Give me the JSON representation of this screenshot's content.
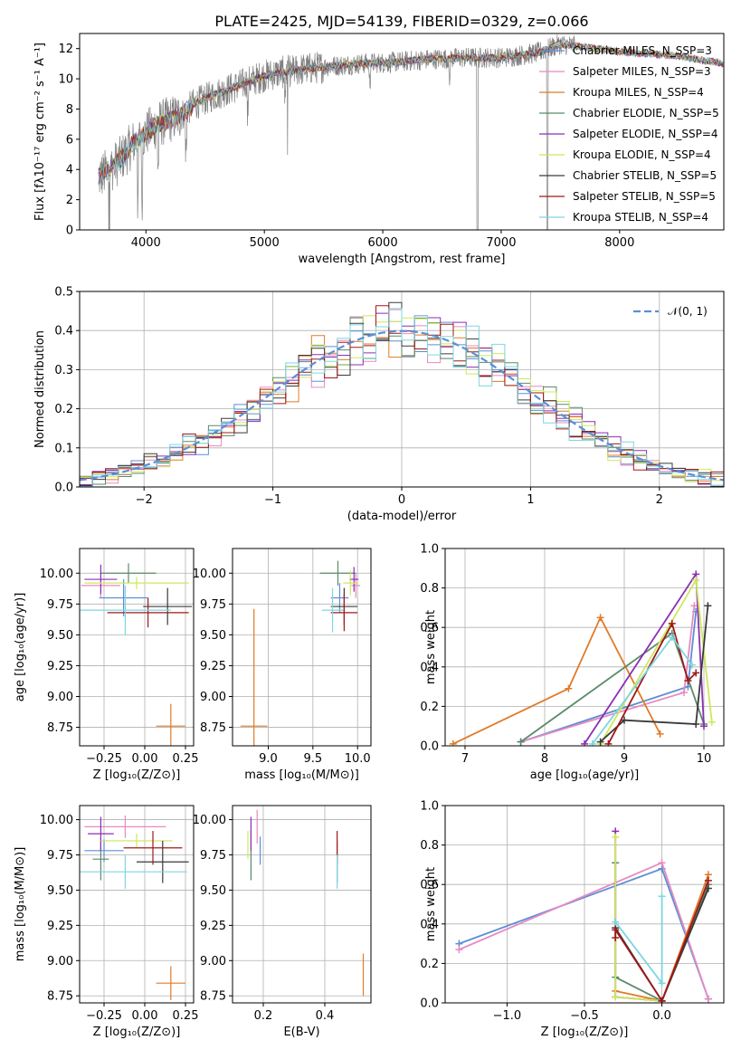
{
  "colors": {
    "chabrier_miles": "#5b8fd6",
    "salpeter_miles": "#e88ac0",
    "kroupa_miles": "#e07b28",
    "chabrier_elodie": "#5a8a6a",
    "salpeter_elodie": "#8b2fb4",
    "kroupa_elodie": "#cde85a",
    "chabrier_stelib": "#3a3a3a",
    "salpeter_stelib": "#a01818",
    "kroupa_stelib": "#7dd6e0",
    "data": "#808080",
    "normal": "#5b8fd6"
  },
  "chart_data": [
    {
      "id": "spectrum",
      "type": "line",
      "title": "PLATE=2425, MJD=54139, FIBERID=0329, z=0.066",
      "xlabel": "wavelength [Angstrom, rest frame]",
      "ylabel": "Flux [fλ10⁻¹⁷ erg cm⁻² s⁻¹ A⁻¹]",
      "xlim": [
        3440,
        8880
      ],
      "ylim": [
        0,
        13
      ],
      "xticks": [
        "4000",
        "5000",
        "6000",
        "7000",
        "8000"
      ],
      "yticks": [
        "0",
        "2",
        "4",
        "6",
        "8",
        "10",
        "12"
      ],
      "grid": false,
      "legend_position": "right",
      "continuum": {
        "x": [
          3600,
          3700,
          3800,
          3900,
          4000,
          4100,
          4200,
          4300,
          4400,
          4600,
          4800,
          5000,
          5200,
          5500,
          5800,
          6100,
          6400,
          6700,
          7000,
          7300,
          7500,
          8000,
          8500,
          8880
        ],
        "y": [
          3.5,
          4.0,
          4.8,
          5.8,
          6.4,
          7.0,
          7.3,
          7.6,
          8.3,
          9.0,
          9.6,
          10.2,
          10.5,
          10.8,
          11.0,
          11.1,
          11.3,
          11.4,
          11.4,
          11.7,
          12.3,
          11.8,
          11.5,
          11.0
        ]
      },
      "legend": [
        "Chabrier MILES, N_SSP=3",
        "Salpeter MILES, N_SSP=3",
        "Kroupa MILES, N_SSP=4",
        "Chabrier ELODIE, N_SSP=5",
        "Salpeter ELODIE, N_SSP=4",
        "Kroupa ELODIE, N_SSP=4",
        "Chabrier STELIB, N_SSP=5",
        "Salpeter STELIB, N_SSP=5",
        "Kroupa STELIB, N_SSP=4"
      ]
    },
    {
      "id": "residuals",
      "type": "histogram",
      "xlabel": "(data-model)/error",
      "ylabel": "Normed distribution",
      "xlim": [
        -2.5,
        2.5
      ],
      "ylim": [
        0,
        0.5
      ],
      "xticks": [
        "−2",
        "−1",
        "0",
        "1",
        "2"
      ],
      "yticks": [
        "0.0",
        "0.1",
        "0.2",
        "0.3",
        "0.4",
        "0.5"
      ],
      "grid": true,
      "bin_width": 0.1,
      "reference_curve": "N(0,1)",
      "legend": [
        "𝒩(0, 1)"
      ],
      "legend_position": "top-right"
    },
    {
      "id": "age_vs_Z",
      "type": "errorbar",
      "xlabel": "Z [log₁₀(Z/Z⊙)]",
      "ylabel": "age  [log₁₀(age/yr)]",
      "xlim": [
        -0.4,
        0.3
      ],
      "ylim": [
        8.6,
        10.2
      ],
      "xticks": [
        "−0.25",
        "0.00",
        "0.25"
      ],
      "yticks": [
        "8.75",
        "9.00",
        "9.25",
        "9.50",
        "9.75",
        "10.00"
      ],
      "grid": true,
      "points": [
        {
          "model": "chabrier_miles",
          "x": -0.13,
          "xerr": 0.15,
          "y": 9.8,
          "yerr": 0.15
        },
        {
          "model": "salpeter_miles",
          "x": -0.27,
          "xerr": 0.12,
          "y": 9.9,
          "yerr": 0.1
        },
        {
          "model": "kroupa_miles",
          "x": 0.16,
          "xerr": 0.09,
          "y": 8.76,
          "yerr": 0.18
        },
        {
          "model": "chabrier_elodie",
          "x": -0.1,
          "xerr": 0.17,
          "y": 10.0,
          "yerr": 0.08
        },
        {
          "model": "salpeter_elodie",
          "x": -0.27,
          "xerr": 0.1,
          "y": 9.95,
          "yerr": 0.12
        },
        {
          "model": "kroupa_elodie",
          "x": -0.05,
          "xerr": 0.32,
          "y": 9.92,
          "yerr": 0.05
        },
        {
          "model": "chabrier_stelib",
          "x": 0.14,
          "xerr": 0.15,
          "y": 9.73,
          "yerr": 0.15
        },
        {
          "model": "salpeter_stelib",
          "x": 0.02,
          "xerr": 0.25,
          "y": 9.68,
          "yerr": 0.12
        },
        {
          "model": "kroupa_stelib",
          "x": -0.12,
          "xerr": 0.28,
          "y": 9.7,
          "yerr": 0.2
        }
      ]
    },
    {
      "id": "age_vs_mass",
      "type": "errorbar",
      "xlabel": "mass [log₁₀(M/M⊙)]",
      "ylabel": "",
      "xlim": [
        8.6,
        10.15
      ],
      "ylim": [
        8.6,
        10.2
      ],
      "xticks": [
        "9.0",
        "9.5",
        "10.0"
      ],
      "yticks": [
        "8.75",
        "9.00",
        "9.25",
        "9.50",
        "9.75",
        "10.00"
      ],
      "grid": true,
      "points": [
        {
          "model": "chabrier_miles",
          "x": 9.8,
          "xerr": 0.1,
          "y": 9.8,
          "yerr": 0.12
        },
        {
          "model": "salpeter_miles",
          "x": 9.98,
          "xerr": 0.05,
          "y": 9.9,
          "yerr": 0.1
        },
        {
          "model": "kroupa_miles",
          "x": 8.84,
          "xerr": 0.15,
          "y": 8.76,
          "yerr": 0.95
        },
        {
          "model": "chabrier_elodie",
          "x": 9.78,
          "xerr": 0.2,
          "y": 10.0,
          "yerr": 0.1
        },
        {
          "model": "salpeter_elodie",
          "x": 9.96,
          "xerr": 0.05,
          "y": 9.95,
          "yerr": 0.1
        },
        {
          "model": "kroupa_elodie",
          "x": 9.92,
          "xerr": 0.08,
          "y": 9.92,
          "yerr": 0.1
        },
        {
          "model": "chabrier_stelib",
          "x": 9.85,
          "xerr": 0.15,
          "y": 9.73,
          "yerr": 0.15
        },
        {
          "model": "salpeter_stelib",
          "x": 9.85,
          "xerr": 0.15,
          "y": 9.68,
          "yerr": 0.15
        },
        {
          "model": "kroupa_stelib",
          "x": 9.72,
          "xerr": 0.12,
          "y": 9.7,
          "yerr": 0.18
        }
      ]
    },
    {
      "id": "weight_vs_age",
      "type": "line",
      "xlabel": "age  [log₁₀(age/yr)]",
      "ylabel": "mass weight",
      "xlim": [
        6.75,
        10.25
      ],
      "ylim": [
        0,
        1.0
      ],
      "xticks": [
        "7",
        "8",
        "9",
        "10"
      ],
      "yticks": [
        "0.0",
        "0.2",
        "0.4",
        "0.6",
        "0.8",
        "1.0"
      ],
      "grid": true,
      "series": [
        {
          "model": "chabrier_miles",
          "x": [
            7.7,
            9.8,
            9.9
          ],
          "y": [
            0.02,
            0.3,
            0.68
          ]
        },
        {
          "model": "salpeter_miles",
          "x": [
            7.7,
            9.75,
            9.88
          ],
          "y": [
            0.02,
            0.27,
            0.71
          ]
        },
        {
          "model": "kroupa_miles",
          "x": [
            6.85,
            8.3,
            8.7,
            9.45
          ],
          "y": [
            0.01,
            0.29,
            0.65,
            0.06
          ]
        },
        {
          "model": "chabrier_elodie",
          "x": [
            7.7,
            9.6,
            10.0
          ],
          "y": [
            0.02,
            0.57,
            0.11
          ]
        },
        {
          "model": "salpeter_elodie",
          "x": [
            8.5,
            9.9,
            10.0
          ],
          "y": [
            0.01,
            0.87,
            0.1
          ]
        },
        {
          "model": "kroupa_elodie",
          "x": [
            8.7,
            9.9,
            10.1
          ],
          "y": [
            0.01,
            0.84,
            0.12
          ]
        },
        {
          "model": "chabrier_stelib",
          "x": [
            8.7,
            9.0,
            9.9,
            10.05
          ],
          "y": [
            0.02,
            0.13,
            0.11,
            0.71
          ]
        },
        {
          "model": "salpeter_stelib",
          "x": [
            8.8,
            9.6,
            9.8,
            9.9
          ],
          "y": [
            0.01,
            0.62,
            0.33,
            0.37
          ]
        },
        {
          "model": "kroupa_stelib",
          "x": [
            8.6,
            9.6,
            9.85
          ],
          "y": [
            0.01,
            0.55,
            0.41
          ]
        }
      ]
    },
    {
      "id": "mass_vs_Z",
      "type": "errorbar",
      "xlabel": "Z [log₁₀(Z/Z⊙)]",
      "ylabel": "mass [log₁₀(M/M⊙)]",
      "xlim": [
        -0.4,
        0.3
      ],
      "ylim": [
        8.7,
        10.1
      ],
      "xticks": [
        "−0.25",
        "0.00",
        "0.25"
      ],
      "yticks": [
        "8.75",
        "9.00",
        "9.25",
        "9.50",
        "9.75",
        "10.00"
      ],
      "grid": true,
      "points": [
        {
          "model": "chabrier_miles",
          "x": -0.25,
          "xerr": 0.12,
          "y": 9.78,
          "yerr": 0.08
        },
        {
          "model": "salpeter_miles",
          "x": -0.12,
          "xerr": 0.25,
          "y": 9.95,
          "yerr": 0.08
        },
        {
          "model": "kroupa_miles",
          "x": 0.16,
          "xerr": 0.09,
          "y": 8.84,
          "yerr": 0.12
        },
        {
          "model": "chabrier_elodie",
          "x": -0.27,
          "xerr": 0.05,
          "y": 9.72,
          "yerr": 0.15
        },
        {
          "model": "salpeter_elodie",
          "x": -0.27,
          "xerr": 0.08,
          "y": 9.9,
          "yerr": 0.12
        },
        {
          "model": "kroupa_elodie",
          "x": -0.05,
          "xerr": 0.22,
          "y": 9.85,
          "yerr": 0.05
        },
        {
          "model": "chabrier_stelib",
          "x": 0.11,
          "xerr": 0.16,
          "y": 9.7,
          "yerr": 0.15
        },
        {
          "model": "salpeter_stelib",
          "x": 0.05,
          "xerr": 0.18,
          "y": 9.8,
          "yerr": 0.12
        },
        {
          "model": "kroupa_stelib",
          "x": -0.12,
          "xerr": 0.38,
          "y": 9.63,
          "yerr": 0.12
        }
      ]
    },
    {
      "id": "mass_vs_EBV",
      "type": "errorbar",
      "xlabel": "E(B-V)",
      "ylabel": "",
      "xlim": [
        0.1,
        0.55
      ],
      "ylim": [
        8.7,
        10.1
      ],
      "xticks": [
        "0.2",
        "0.4"
      ],
      "yticks": [
        "8.75",
        "9.00",
        "9.25",
        "9.50",
        "9.75",
        "10.00"
      ],
      "grid": true,
      "points": [
        {
          "model": "chabrier_miles",
          "x": 0.19,
          "xerr": 0,
          "y": 9.78,
          "yerr": 0.1
        },
        {
          "model": "salpeter_miles",
          "x": 0.18,
          "xerr": 0,
          "y": 9.95,
          "yerr": 0.12
        },
        {
          "model": "kroupa_miles",
          "x": 0.525,
          "xerr": 0,
          "y": 8.9,
          "yerr": 0.15
        },
        {
          "model": "chabrier_elodie",
          "x": 0.16,
          "xerr": 0,
          "y": 9.75,
          "yerr": 0.18
        },
        {
          "model": "salpeter_elodie",
          "x": 0.16,
          "xerr": 0,
          "y": 9.9,
          "yerr": 0.12
        },
        {
          "model": "kroupa_elodie",
          "x": 0.15,
          "xerr": 0,
          "y": 9.82,
          "yerr": 0.1
        },
        {
          "model": "chabrier_stelib",
          "x": 0.44,
          "xerr": 0,
          "y": 9.7,
          "yerr": 0.15
        },
        {
          "model": "salpeter_stelib",
          "x": 0.44,
          "xerr": 0,
          "y": 9.8,
          "yerr": 0.12
        },
        {
          "model": "kroupa_stelib",
          "x": 0.44,
          "xerr": 0,
          "y": 9.63,
          "yerr": 0.12
        }
      ]
    },
    {
      "id": "weight_vs_Z",
      "type": "line",
      "xlabel": "Z [log₁₀(Z/Z⊙)]",
      "ylabel": "mass weight",
      "xlim": [
        -1.4,
        0.4
      ],
      "ylim": [
        0,
        1.0
      ],
      "xticks": [
        "−1.0",
        "−0.5",
        "0.0"
      ],
      "yticks": [
        "0.0",
        "0.2",
        "0.4",
        "0.6",
        "0.8",
        "1.0"
      ],
      "grid": true,
      "series": [
        {
          "model": "chabrier_miles",
          "x": [
            -1.31,
            0.0,
            0.3
          ],
          "y": [
            0.3,
            0.68,
            0.02
          ]
        },
        {
          "model": "salpeter_miles",
          "x": [
            -1.31,
            0.0,
            0.3
          ],
          "y": [
            0.27,
            0.71,
            0.02
          ]
        },
        {
          "model": "kroupa_miles",
          "x": [
            -0.3,
            0.0,
            0.3
          ],
          "y": [
            0.06,
            0.01,
            0.65
          ]
        },
        {
          "model": "chabrier_elodie",
          "x": [
            -0.3,
            -0.3,
            0.0,
            0.3
          ],
          "y": [
            0.71,
            0.13,
            0.01,
            0.6
          ]
        },
        {
          "model": "salpeter_elodie",
          "x": [
            -0.3,
            -0.3,
            0.0
          ],
          "y": [
            0.87,
            0.03,
            0.01
          ]
        },
        {
          "model": "kroupa_elodie",
          "x": [
            -0.3,
            -0.3,
            0.0
          ],
          "y": [
            0.84,
            0.03,
            0.01
          ]
        },
        {
          "model": "chabrier_stelib",
          "x": [
            -0.3,
            0.0,
            0.3
          ],
          "y": [
            0.38,
            0.01,
            0.58
          ]
        },
        {
          "model": "salpeter_stelib",
          "x": [
            -0.3,
            -0.3,
            0.0,
            0.3
          ],
          "y": [
            0.33,
            0.37,
            0.01,
            0.62
          ]
        },
        {
          "model": "kroupa_stelib",
          "x": [
            -0.3,
            0.0,
            0.0
          ],
          "y": [
            0.41,
            0.1,
            0.54
          ]
        }
      ]
    }
  ]
}
